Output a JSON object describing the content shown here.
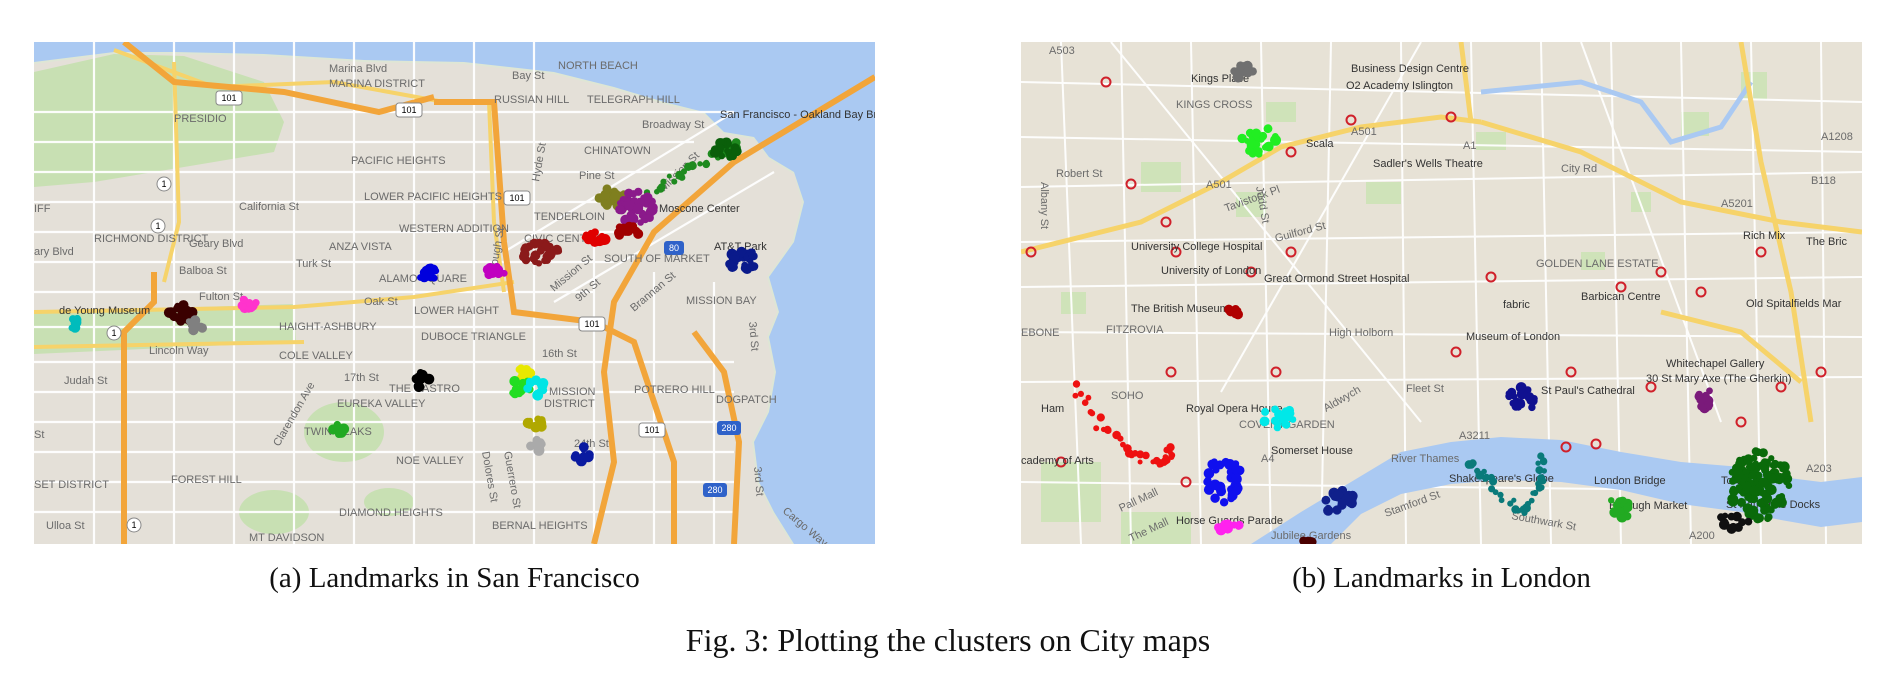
{
  "figure": {
    "caption": "Fig. 3: Plotting the clusters on City maps",
    "subcaptions": {
      "a": "(a) Landmarks in San Francisco",
      "b": "(b) Landmarks in London"
    }
  },
  "colors": {
    "water": "#aac9f2",
    "park": "#c8e0b3",
    "road_major": "#f2a53a",
    "road_yellow": "#f6d36a",
    "street": "#ffffff"
  },
  "maps": {
    "sf": {
      "labels": [
        {
          "id": "marina-blvd",
          "text": "Marina Blvd"
        },
        {
          "id": "bay-st",
          "text": "Bay St"
        },
        {
          "id": "north-beach",
          "text": "NORTH BEACH"
        },
        {
          "id": "marina-district",
          "text": "MARINA DISTRICT"
        },
        {
          "id": "russian-hill",
          "text": "RUSSIAN HILL"
        },
        {
          "id": "telegraph-hill",
          "text": "TELEGRAPH HILL"
        },
        {
          "id": "broadway-st",
          "text": "Broadway St"
        },
        {
          "id": "sf-oakland-bridge",
          "text": "San Francisco - Oakland Bay Bridge"
        },
        {
          "id": "presidio",
          "text": "PRESIDIO"
        },
        {
          "id": "chinatown",
          "text": "CHINATOWN"
        },
        {
          "id": "pacific-heights",
          "text": "PACIFIC HEIGHTS"
        },
        {
          "id": "pine-st",
          "text": "Pine St"
        },
        {
          "id": "hyde-st",
          "text": "Hyde St"
        },
        {
          "id": "lower-pacific-heights",
          "text": "LOWER PACIFIC HEIGHTS"
        },
        {
          "id": "california-st",
          "text": "California St"
        },
        {
          "id": "tenderloin",
          "text": "TENDERLOIN"
        },
        {
          "id": "moscone-center",
          "text": "Moscone Center"
        },
        {
          "id": "mission-st-1",
          "text": "Mission St"
        },
        {
          "id": "richmond-district",
          "text": "RICHMOND DISTRICT"
        },
        {
          "id": "geary-blvd",
          "text": "Geary Blvd"
        },
        {
          "id": "geary-blvd-left",
          "text": "ary Blvd"
        },
        {
          "id": "western-addition",
          "text": "WESTERN ADDITION"
        },
        {
          "id": "civic-center",
          "text": "CIVIC CENTER"
        },
        {
          "id": "att-park",
          "text": "AT&T Park"
        },
        {
          "id": "anza-vista",
          "text": "ANZA VISTA"
        },
        {
          "id": "turk-st",
          "text": "Turk St"
        },
        {
          "id": "balboa-st",
          "text": "Balboa St"
        },
        {
          "id": "gough-st",
          "text": "Gough St"
        },
        {
          "id": "south-of-market",
          "text": "SOUTH OF MARKET"
        },
        {
          "id": "mission-bay",
          "text": "MISSION BAY"
        },
        {
          "id": "alamo-square",
          "text": "ALAMO SQUARE"
        },
        {
          "id": "fulton-st",
          "text": "Fulton St"
        },
        {
          "id": "mission-st-2",
          "text": "Mission St"
        },
        {
          "id": "ninth-st",
          "text": "9th St"
        },
        {
          "id": "brannan-st",
          "text": "Brannan St"
        },
        {
          "id": "de-young",
          "text": "de Young Museum"
        },
        {
          "id": "oak-st",
          "text": "Oak St"
        },
        {
          "id": "lower-haight",
          "text": "LOWER HAIGHT"
        },
        {
          "id": "haight-ashbury",
          "text": "HAIGHT-ASHBURY"
        },
        {
          "id": "duboce-triangle",
          "text": "DUBOCE TRIANGLE"
        },
        {
          "id": "lincoln-way",
          "text": "Lincoln Way"
        },
        {
          "id": "cole-valley",
          "text": "COLE VALLEY"
        },
        {
          "id": "sixteenth-st",
          "text": "16th St"
        },
        {
          "id": "third-st",
          "text": "3rd St"
        },
        {
          "id": "judah-st",
          "text": "Judah St"
        },
        {
          "id": "seventeenth-st",
          "text": "17th St"
        },
        {
          "id": "the-castro",
          "text": "THE CASTRO"
        },
        {
          "id": "mission",
          "text": "MISSION"
        },
        {
          "id": "potrero-hill",
          "text": "POTRERO HILL"
        },
        {
          "id": "dogpatch",
          "text": "DOGPATCH"
        },
        {
          "id": "eureka-valley",
          "text": "EUREKA VALLEY"
        },
        {
          "id": "clarendon-ave",
          "text": "Clarendon Ave"
        },
        {
          "id": "twin-peaks",
          "text": "TWIN PEAKS"
        },
        {
          "id": "guerrero-st",
          "text": "Guerrero St"
        },
        {
          "id": "dolores-st",
          "text": "Dolores St"
        },
        {
          "id": "district",
          "text": "DISTRICT"
        },
        {
          "id": "twentyfourth-st",
          "text": "24th St"
        },
        {
          "id": "noe-valley",
          "text": "NOE VALLEY"
        },
        {
          "id": "forest-hill",
          "text": "FOREST HILL"
        },
        {
          "id": "set-district",
          "text": "SET DISTRICT"
        },
        {
          "id": "diamond-heights",
          "text": "DIAMOND HEIGHTS"
        },
        {
          "id": "bernal-heights",
          "text": "BERNAL HEIGHTS"
        },
        {
          "id": "cargo-way",
          "text": "Cargo Way"
        },
        {
          "id": "third-st-2",
          "text": "3rd St"
        },
        {
          "id": "ulloa-st",
          "text": "Ulloa St"
        },
        {
          "id": "mt-davidson",
          "text": "MT DAVIDSON"
        },
        {
          "id": "iff",
          "text": "IFF"
        },
        {
          "id": "st-left",
          "text": "St"
        }
      ],
      "shields": [
        "101",
        "101",
        "101",
        "101",
        "1",
        "1",
        "1",
        "1",
        "80",
        "280",
        "280",
        "101"
      ]
    },
    "london": {
      "labels": [
        {
          "id": "a503",
          "text": "A503"
        },
        {
          "id": "business-design-centre",
          "text": "Business Design Centre"
        },
        {
          "id": "o2-academy",
          "text": "O2 Academy Islington"
        },
        {
          "id": "kings-place",
          "text": "Kings Place"
        },
        {
          "id": "kings-cross",
          "text": "KINGS CROSS"
        },
        {
          "id": "scala",
          "text": "Scala"
        },
        {
          "id": "sadlers-wells",
          "text": "Sadler's Wells Theatre"
        },
        {
          "id": "a501",
          "text": "A501"
        },
        {
          "id": "a1",
          "text": "A1"
        },
        {
          "id": "city-rd",
          "text": "City Rd"
        },
        {
          "id": "a5201",
          "text": "A5201"
        },
        {
          "id": "a1208",
          "text": "A1208"
        },
        {
          "id": "b118",
          "text": "B118"
        },
        {
          "id": "robert-st",
          "text": "Robert St"
        },
        {
          "id": "albany-st",
          "text": "Albany St"
        },
        {
          "id": "euston-rd",
          "text": "A501"
        },
        {
          "id": "university-college-hospital",
          "text": "University College Hospital"
        },
        {
          "id": "university-of-london",
          "text": "University of London"
        },
        {
          "id": "great-ormond",
          "text": "Great Ormond Street Hospital"
        },
        {
          "id": "tavistock-pl",
          "text": "Tavistock Pl"
        },
        {
          "id": "judd-st",
          "text": "Judd St"
        },
        {
          "id": "guilford-st",
          "text": "Guilford St"
        },
        {
          "id": "golden-lane",
          "text": "GOLDEN LANE ESTATE"
        },
        {
          "id": "fabric",
          "text": "fabric"
        },
        {
          "id": "barbican",
          "text": "Barbican Centre"
        },
        {
          "id": "rich-mix",
          "text": "Rich Mix"
        },
        {
          "id": "the-bric",
          "text": "The Bric"
        },
        {
          "id": "old-spitalfields",
          "text": "Old Spitalfields Mar"
        },
        {
          "id": "british-museum",
          "text": "The British Museum"
        },
        {
          "id": "fitzrovia",
          "text": "FITZROVIA"
        },
        {
          "id": "high-holborn",
          "text": "High Holborn"
        },
        {
          "id": "museum-of-london",
          "text": "Museum of London"
        },
        {
          "id": "whitechapel",
          "text": "Whitechapel Gallery"
        },
        {
          "id": "debone",
          "text": "EBONE"
        },
        {
          "id": "soho",
          "text": "SOHO"
        },
        {
          "id": "fleet-st",
          "text": "Fleet St"
        },
        {
          "id": "st-pauls",
          "text": "St Paul's Cathedral"
        },
        {
          "id": "gherkin",
          "text": "30 St Mary Axe (The Gherkin)"
        },
        {
          "id": "royal-opera",
          "text": "Royal Opera House"
        },
        {
          "id": "covent-garden",
          "text": "COVENT GARDEN"
        },
        {
          "id": "aldwych",
          "text": "Aldwych"
        },
        {
          "id": "ham",
          "text": "Ham"
        },
        {
          "id": "somerset",
          "text": "Somerset House"
        },
        {
          "id": "river-thames",
          "text": "River Thames"
        },
        {
          "id": "a3211",
          "text": "A3211"
        },
        {
          "id": "shakespeares-globe",
          "text": "Shakespeare's Globe"
        },
        {
          "id": "london-bridge",
          "text": "London Bridge"
        },
        {
          "id": "tower-of",
          "text": "Tower of"
        },
        {
          "id": "academy-of-arts",
          "text": "cademy of Arts"
        },
        {
          "id": "pall-mall",
          "text": "Pall Mall"
        },
        {
          "id": "horse-guards",
          "text": "Horse Guards Parade"
        },
        {
          "id": "jubilee-gardens",
          "text": "Jubilee Gardens"
        },
        {
          "id": "stamford-st",
          "text": "Stamford St"
        },
        {
          "id": "southwark-st",
          "text": "Southwark St"
        },
        {
          "id": "borough-market",
          "text": "Borough Market"
        },
        {
          "id": "st-katharine",
          "text": "St Katharine Docks"
        },
        {
          "id": "a200",
          "text": "A200"
        },
        {
          "id": "the-mall",
          "text": "The Mall"
        },
        {
          "id": "a4",
          "text": "A4"
        },
        {
          "id": "a203",
          "text": "A203"
        }
      ]
    }
  }
}
